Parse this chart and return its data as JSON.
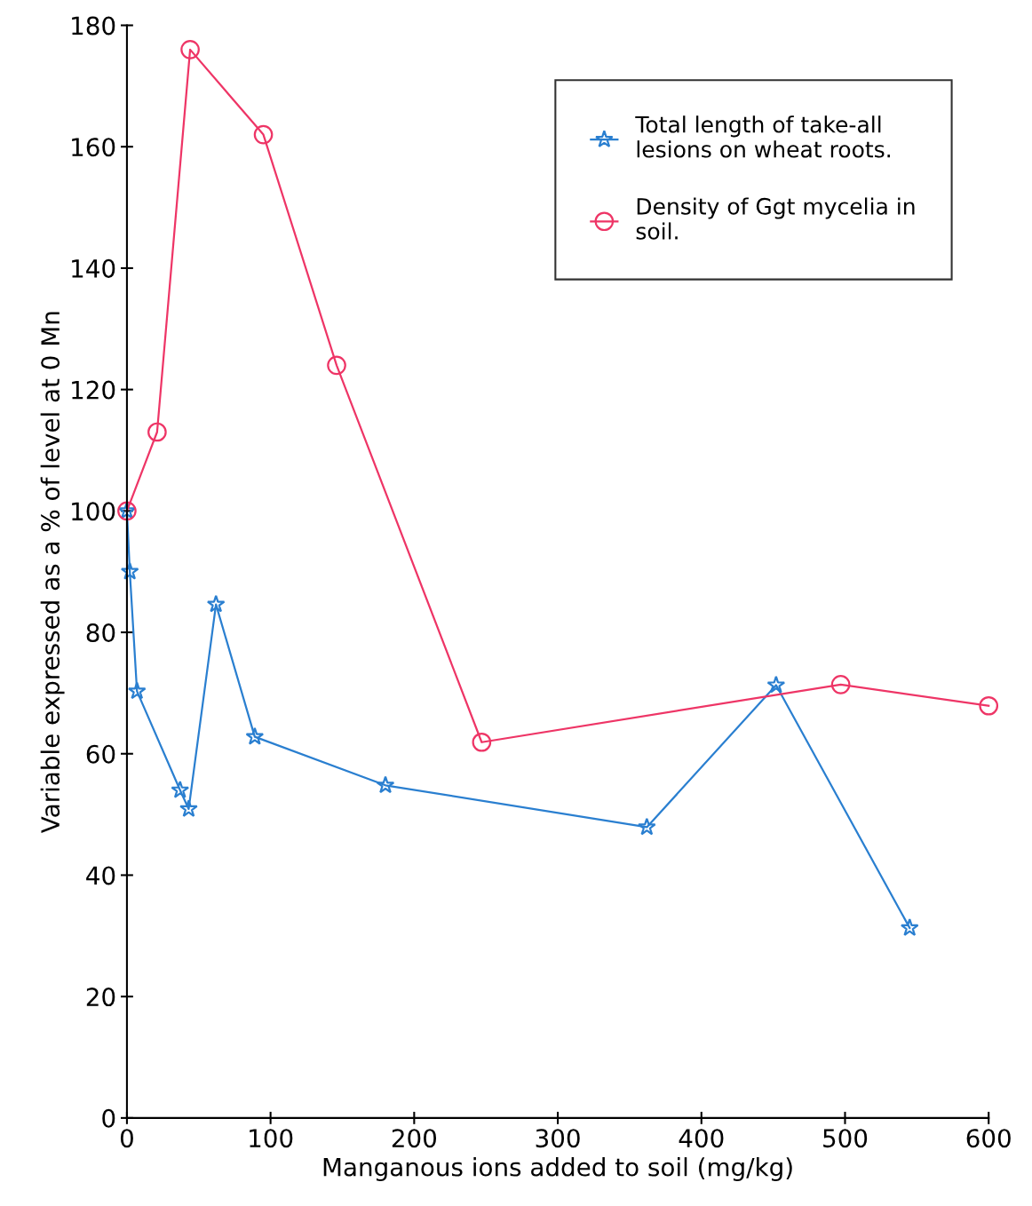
{
  "chart_data": {
    "type": "line",
    "xlabel": "Manganous ions added to soil (mg/kg)",
    "ylabel": "Variable expressed as a % of level at 0 Mn",
    "xlim": [
      0,
      600
    ],
    "xticks": [
      0,
      100,
      200,
      300,
      400,
      500,
      600
    ],
    "ylim": [
      0,
      180
    ],
    "yticks": [
      0,
      20,
      40,
      60,
      80,
      100,
      120,
      140,
      160,
      180
    ],
    "grid": false,
    "legend": "top right",
    "series": [
      {
        "name": "Total length of take-all\nlesions on wheat roots.",
        "color": "#2a7fd0",
        "marker": "star",
        "x": [
          0,
          2,
          7,
          37,
          43,
          62,
          89,
          180,
          362,
          452,
          545
        ],
        "values": [
          100,
          90,
          70.3,
          54,
          50.9,
          84.6,
          62.8,
          54.8,
          47.9,
          71.3,
          31.3
        ]
      },
      {
        "name": "Density of Ggt mycelia in\nsoil.",
        "color": "#ee3566",
        "marker": "circle",
        "x": [
          0,
          21,
          44,
          95,
          146,
          247,
          497,
          600
        ],
        "values": [
          100,
          113,
          176,
          162,
          124,
          61.9,
          71.4,
          67.9
        ]
      }
    ]
  }
}
